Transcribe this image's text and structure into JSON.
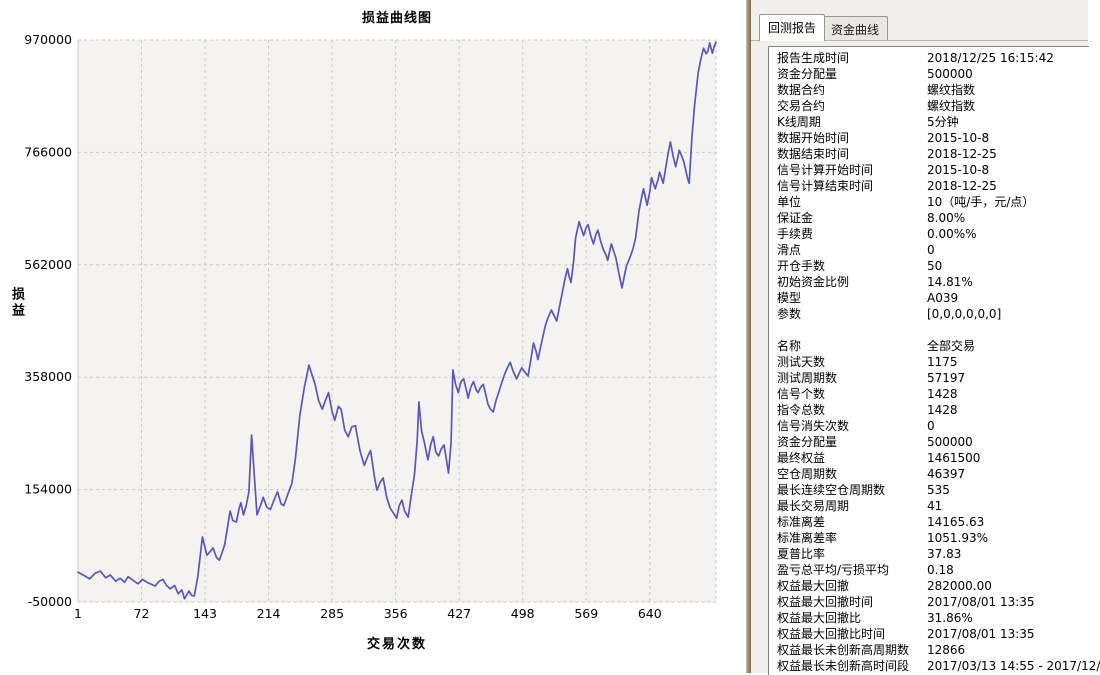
{
  "right_panel": {
    "tabs": [
      {
        "label": "回测报告",
        "active": true
      },
      {
        "label": "资金曲线",
        "active": false
      }
    ],
    "report": {
      "rows": [
        {
          "label": "报告生成时间",
          "value": "2018/12/25 16:15:42"
        },
        {
          "label": "资金分配量",
          "value": "500000"
        },
        {
          "label": "数据合约",
          "value": "螺纹指数"
        },
        {
          "label": "交易合约",
          "value": "螺纹指数"
        },
        {
          "label": "K线周期",
          "value": "5分钟"
        },
        {
          "label": "数据开始时间",
          "value": "2015-10-8"
        },
        {
          "label": "数据结束时间",
          "value": "2018-12-25"
        },
        {
          "label": "信号计算开始时间",
          "value": "2015-10-8"
        },
        {
          "label": "信号计算结束时间",
          "value": "2018-12-25"
        },
        {
          "label": "单位",
          "value": "10（吨/手，元/点）"
        },
        {
          "label": "保证金",
          "value": "8.00%"
        },
        {
          "label": "手续费",
          "value": "0.00%%"
        },
        {
          "label": "滑点",
          "value": "0"
        },
        {
          "label": "开仓手数",
          "value": "50"
        },
        {
          "label": "初始资金比例",
          "value": "14.81%"
        },
        {
          "label": "模型",
          "value": "A039"
        },
        {
          "label": "参数",
          "value": "[0,0,0,0,0,0]"
        },
        {
          "label": "",
          "value": ""
        },
        {
          "label": "名称",
          "value": "全部交易"
        },
        {
          "label": "测试天数",
          "value": "1175"
        },
        {
          "label": "测试周期数",
          "value": "57197"
        },
        {
          "label": "信号个数",
          "value": "1428"
        },
        {
          "label": "指令总数",
          "value": "1428"
        },
        {
          "label": "信号消失次数",
          "value": "0"
        },
        {
          "label": "资金分配量",
          "value": "500000"
        },
        {
          "label": "最终权益",
          "value": "1461500"
        },
        {
          "label": "空仓周期数",
          "value": "46397"
        },
        {
          "label": "最长连续空仓周期数",
          "value": "535"
        },
        {
          "label": "最长交易周期",
          "value": "41"
        },
        {
          "label": "标准离差",
          "value": "14165.63"
        },
        {
          "label": "标准离差率",
          "value": "1051.93%"
        },
        {
          "label": "夏普比率",
          "value": "37.83"
        },
        {
          "label": "盈亏总平均/亏损平均",
          "value": "0.18"
        },
        {
          "label": "权益最大回撤",
          "value": "282000.00"
        },
        {
          "label": "权益最大回撤时间",
          "value": "2017/08/01 13:35"
        },
        {
          "label": "权益最大回撤比",
          "value": "31.86%"
        },
        {
          "label": "权益最大回撤比时间",
          "value": "2017/08/01 13:35"
        },
        {
          "label": "权益最长未创新高周期数",
          "value": "12866"
        },
        {
          "label": "权益最长未创新高时间段",
          "value": "2017/03/13 14:55 - 2017/12/"
        }
      ]
    }
  },
  "chart_data": {
    "type": "line",
    "title": "损益曲线图",
    "xlabel": "交易次数",
    "ylabel": "损益",
    "xlim": [
      1,
      714
    ],
    "ylim": [
      -50000,
      970000
    ],
    "x_ticks": [
      1,
      72,
      143,
      214,
      285,
      356,
      427,
      498,
      569,
      640
    ],
    "y_ticks": [
      970000,
      766000,
      562000,
      358000,
      154000,
      -50000
    ],
    "grid": true,
    "legend": "none",
    "line_color": "#5b56b8",
    "plot_bg": "#f4f3f1",
    "grid_color": "#c9c9c9",
    "series": [
      {
        "name": "损益",
        "points": [
          [
            1,
            4000
          ],
          [
            8,
            -2000
          ],
          [
            14,
            -8000
          ],
          [
            20,
            2000
          ],
          [
            26,
            6000
          ],
          [
            32,
            -6000
          ],
          [
            37,
            -1000
          ],
          [
            43,
            -12000
          ],
          [
            48,
            -7000
          ],
          [
            53,
            -14000
          ],
          [
            57,
            -4000
          ],
          [
            62,
            -10000
          ],
          [
            68,
            -17000
          ],
          [
            73,
            -9000
          ],
          [
            79,
            -15000
          ],
          [
            87,
            -21000
          ],
          [
            92,
            -12000
          ],
          [
            96,
            -9000
          ],
          [
            100,
            -20000
          ],
          [
            104,
            -26000
          ],
          [
            109,
            -20000
          ],
          [
            113,
            -35000
          ],
          [
            117,
            -28000
          ],
          [
            120,
            -44000
          ],
          [
            125,
            -30000
          ],
          [
            128,
            -38000
          ],
          [
            131,
            -39000
          ],
          [
            135,
            -3000
          ],
          [
            140,
            68000
          ],
          [
            145,
            35000
          ],
          [
            149,
            42000
          ],
          [
            152,
            48000
          ],
          [
            156,
            30000
          ],
          [
            159,
            26000
          ],
          [
            162,
            40000
          ],
          [
            165,
            54000
          ],
          [
            171,
            115000
          ],
          [
            174,
            98000
          ],
          [
            178,
            95000
          ],
          [
            181,
            120000
          ],
          [
            183,
            130000
          ],
          [
            186,
            108000
          ],
          [
            189,
            125000
          ],
          [
            192,
            150000
          ],
          [
            195,
            253000
          ],
          [
            201,
            108000
          ],
          [
            205,
            125000
          ],
          [
            208,
            140000
          ],
          [
            212,
            122000
          ],
          [
            216,
            118000
          ],
          [
            220,
            135000
          ],
          [
            224,
            150000
          ],
          [
            228,
            128000
          ],
          [
            231,
            125000
          ],
          [
            236,
            148000
          ],
          [
            240,
            165000
          ],
          [
            244,
            210000
          ],
          [
            249,
            290000
          ],
          [
            254,
            340000
          ],
          [
            259,
            380000
          ],
          [
            263,
            360000
          ],
          [
            266,
            345000
          ],
          [
            270,
            315000
          ],
          [
            274,
            300000
          ],
          [
            278,
            318000
          ],
          [
            281,
            330000
          ],
          [
            285,
            295000
          ],
          [
            288,
            280000
          ],
          [
            292,
            305000
          ],
          [
            295,
            300000
          ],
          [
            299,
            262000
          ],
          [
            303,
            250000
          ],
          [
            307,
            268000
          ],
          [
            311,
            270000
          ],
          [
            316,
            225000
          ],
          [
            321,
            198000
          ],
          [
            325,
            215000
          ],
          [
            328,
            225000
          ],
          [
            332,
            180000
          ],
          [
            335,
            153000
          ],
          [
            339,
            168000
          ],
          [
            342,
            175000
          ],
          [
            346,
            140000
          ],
          [
            350,
            120000
          ],
          [
            354,
            110000
          ],
          [
            357,
            102000
          ],
          [
            360,
            125000
          ],
          [
            363,
            135000
          ],
          [
            366,
            115000
          ],
          [
            370,
            104000
          ],
          [
            374,
            150000
          ],
          [
            377,
            180000
          ],
          [
            380,
            240000
          ],
          [
            382,
            313000
          ],
          [
            385,
            260000
          ],
          [
            388,
            240000
          ],
          [
            392,
            208000
          ],
          [
            395,
            235000
          ],
          [
            398,
            250000
          ],
          [
            401,
            222000
          ],
          [
            404,
            215000
          ],
          [
            407,
            228000
          ],
          [
            410,
            235000
          ],
          [
            413,
            205000
          ],
          [
            415,
            184000
          ],
          [
            418,
            240000
          ],
          [
            420,
            371000
          ],
          [
            423,
            345000
          ],
          [
            426,
            330000
          ],
          [
            429,
            350000
          ],
          [
            432,
            355000
          ],
          [
            435,
            335000
          ],
          [
            437,
            320000
          ],
          [
            440,
            340000
          ],
          [
            443,
            350000
          ],
          [
            446,
            335000
          ],
          [
            448,
            330000
          ],
          [
            451,
            340000
          ],
          [
            454,
            345000
          ],
          [
            457,
            325000
          ],
          [
            459,
            310000
          ],
          [
            462,
            300000
          ],
          [
            465,
            295000
          ],
          [
            468,
            315000
          ],
          [
            471,
            330000
          ],
          [
            474,
            345000
          ],
          [
            477,
            360000
          ],
          [
            480,
            372000
          ],
          [
            484,
            385000
          ],
          [
            487,
            370000
          ],
          [
            491,
            355000
          ],
          [
            494,
            365000
          ],
          [
            497,
            375000
          ],
          [
            500,
            368000
          ],
          [
            504,
            360000
          ],
          [
            507,
            390000
          ],
          [
            510,
            420000
          ],
          [
            513,
            405000
          ],
          [
            515,
            390000
          ],
          [
            519,
            420000
          ],
          [
            523,
            450000
          ],
          [
            526,
            465000
          ],
          [
            530,
            480000
          ],
          [
            533,
            470000
          ],
          [
            536,
            460000
          ],
          [
            539,
            485000
          ],
          [
            542,
            510000
          ],
          [
            545,
            535000
          ],
          [
            548,
            555000
          ],
          [
            550,
            540000
          ],
          [
            552,
            530000
          ],
          [
            555,
            570000
          ],
          [
            557,
            610000
          ],
          [
            559,
            625000
          ],
          [
            561,
            640000
          ],
          [
            564,
            625000
          ],
          [
            566,
            615000
          ],
          [
            569,
            630000
          ],
          [
            571,
            635000
          ],
          [
            574,
            615000
          ],
          [
            577,
            600000
          ],
          [
            580,
            618000
          ],
          [
            582,
            625000
          ],
          [
            585,
            605000
          ],
          [
            588,
            590000
          ],
          [
            591,
            580000
          ],
          [
            593,
            570000
          ],
          [
            595,
            585000
          ],
          [
            597,
            600000
          ],
          [
            600,
            585000
          ],
          [
            602,
            575000
          ],
          [
            605,
            550000
          ],
          [
            609,
            520000
          ],
          [
            612,
            545000
          ],
          [
            614,
            560000
          ],
          [
            618,
            576000
          ],
          [
            621,
            590000
          ],
          [
            624,
            610000
          ],
          [
            626,
            635000
          ],
          [
            628,
            660000
          ],
          [
            631,
            685000
          ],
          [
            633,
            700000
          ],
          [
            635,
            685000
          ],
          [
            637,
            670000
          ],
          [
            640,
            695000
          ],
          [
            642,
            720000
          ],
          [
            644,
            710000
          ],
          [
            646,
            700000
          ],
          [
            649,
            715000
          ],
          [
            651,
            730000
          ],
          [
            653,
            720000
          ],
          [
            655,
            710000
          ],
          [
            658,
            740000
          ],
          [
            660,
            760000
          ],
          [
            663,
            785000
          ],
          [
            666,
            760000
          ],
          [
            669,
            740000
          ],
          [
            671,
            755000
          ],
          [
            673,
            770000
          ],
          [
            676,
            758000
          ],
          [
            678,
            749000
          ],
          [
            680,
            735000
          ],
          [
            682,
            720000
          ],
          [
            684,
            710000
          ],
          [
            687,
            790000
          ],
          [
            690,
            850000
          ],
          [
            694,
            910000
          ],
          [
            697,
            935000
          ],
          [
            700,
            955000
          ],
          [
            703,
            945000
          ],
          [
            705,
            950000
          ],
          [
            707,
            965000
          ],
          [
            710,
            946000
          ],
          [
            712,
            958000
          ],
          [
            714,
            966000
          ]
        ]
      }
    ]
  }
}
